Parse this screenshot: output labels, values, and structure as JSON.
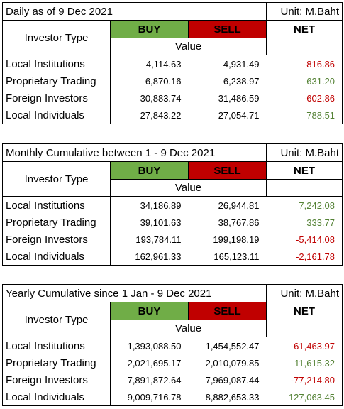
{
  "tables": [
    {
      "title": "Daily as of 9 Dec 2021",
      "unit": "Unit: M.Baht",
      "headers": {
        "investor_type": "Investor Type",
        "buy": "BUY",
        "sell": "SELL",
        "net": "NET",
        "value": "Value"
      },
      "rows": [
        [
          "Local Institutions",
          "4,114.63",
          "4,931.49",
          "-816.86"
        ],
        [
          "Proprietary Trading",
          "6,870.16",
          "6,238.97",
          "631.20"
        ],
        [
          "Foreign Investors",
          "30,883.74",
          "31,486.59",
          "-602.86"
        ],
        [
          "Local Individuals",
          "27,843.22",
          "27,054.71",
          "788.51"
        ]
      ]
    },
    {
      "title": "Monthly Cumulative between 1 - 9 Dec 2021",
      "unit": "Unit: M.Baht",
      "headers": {
        "investor_type": "Investor Type",
        "buy": "BUY",
        "sell": "SELL",
        "net": "NET",
        "value": "Value"
      },
      "rows": [
        [
          "Local Institutions",
          "34,186.89",
          "26,944.81",
          "7,242.08"
        ],
        [
          "Proprietary Trading",
          "39,101.63",
          "38,767.86",
          "333.77"
        ],
        [
          "Foreign Investors",
          "193,784.11",
          "199,198.19",
          "-5,414.08"
        ],
        [
          "Local Individuals",
          "162,961.33",
          "165,123.11",
          "-2,161.78"
        ]
      ]
    },
    {
      "title": "Yearly Cumulative since 1 Jan - 9 Dec 2021",
      "unit": "Unit: M.Baht",
      "headers": {
        "investor_type": "Investor Type",
        "buy": "BUY",
        "sell": "SELL",
        "net": "NET",
        "value": "Value"
      },
      "rows": [
        [
          "Local Institutions",
          "1,393,088.50",
          "1,454,552.47",
          "-61,463.97"
        ],
        [
          "Proprietary Trading",
          "2,021,695.17",
          "2,010,079.85",
          "11,615.32"
        ],
        [
          "Foreign Investors",
          "7,891,872.64",
          "7,969,087.44",
          "-77,214.80"
        ],
        [
          "Local Individuals",
          "9,009,716.78",
          "8,882,653.33",
          "127,063.45"
        ]
      ]
    }
  ]
}
